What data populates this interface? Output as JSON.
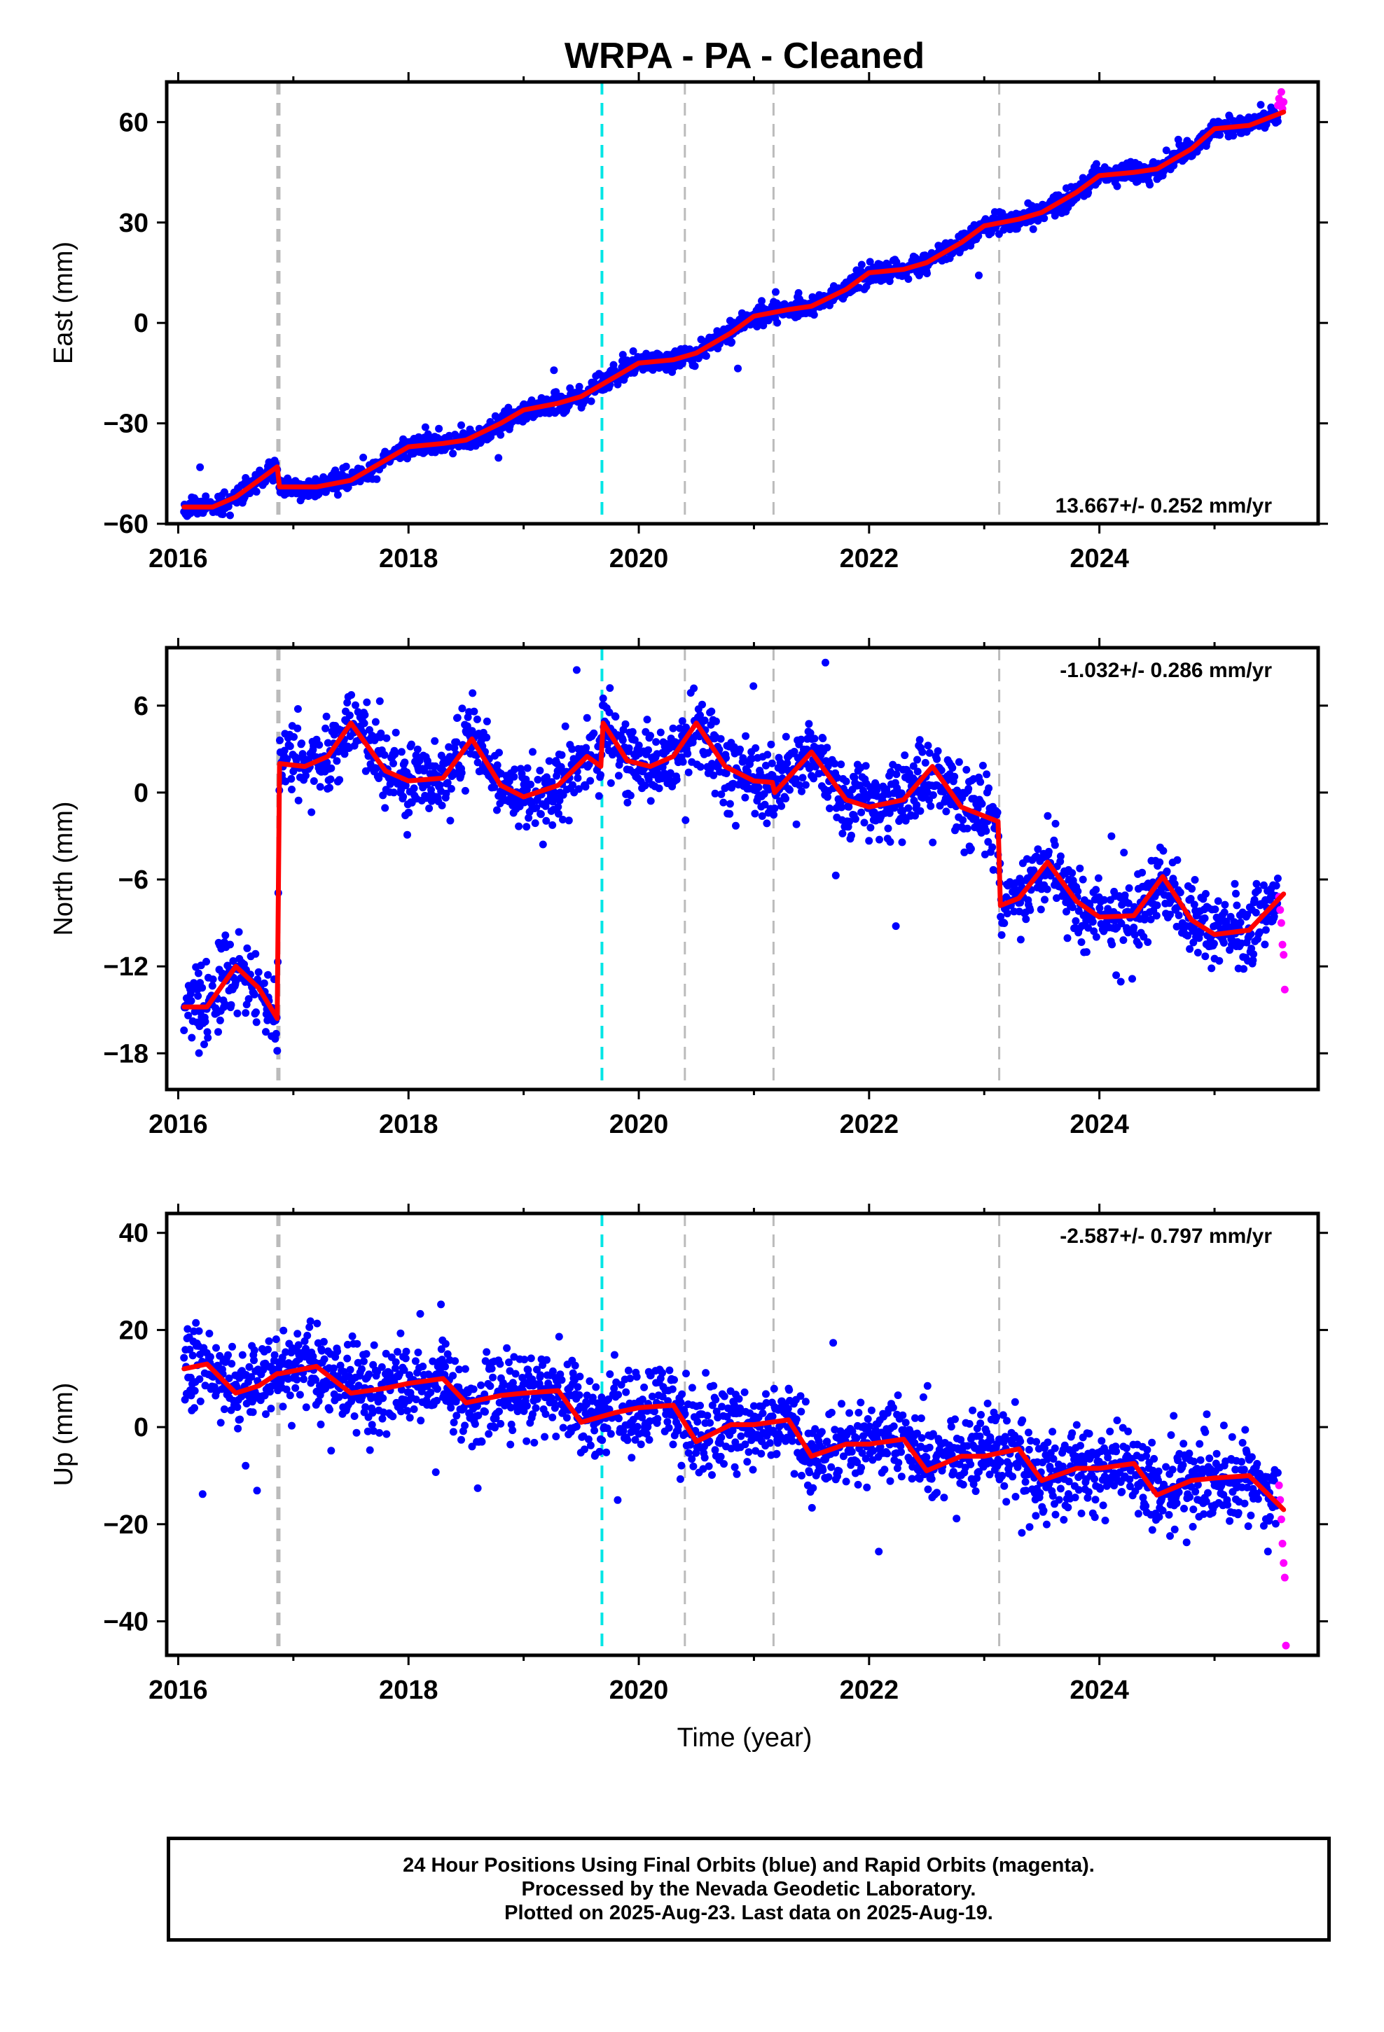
{
  "title": "WRPA  - PA - Cleaned",
  "x_axis_label": "Time (year)",
  "x_ticks": [
    "2016",
    "2018",
    "2020",
    "2022",
    "2024"
  ],
  "colors": {
    "final_orbits": "#0000ff",
    "rapid_orbits": "#ff00ff",
    "model_fit": "#ff0000",
    "equipment_change": "#bbbbbb",
    "earthquake": "#00e5e5"
  },
  "caption": {
    "line1": "24 Hour Positions Using Final Orbits (blue) and Rapid Orbits (magenta).",
    "line2": "Processed by the Nevada Geodetic Laboratory.",
    "line3": "Plotted on 2025-Aug-23. Last data on 2025-Aug-19."
  },
  "chart_data": [
    {
      "type": "scatter",
      "component": "East",
      "ylabel": "East (mm)",
      "rate_label": "13.667+/- 0.252 mm/yr",
      "rate_label_position": "bottom-right",
      "xlim": [
        2015.9,
        2025.9
      ],
      "ylim": [
        -60,
        72
      ],
      "y_ticks": [
        -60,
        -30,
        0,
        30,
        60
      ],
      "discontinuities_gray": [
        2016.87,
        2020.4,
        2021.17,
        2023.13
      ],
      "discontinuities_cyan": [
        2019.68
      ],
      "model_fit": {
        "x": [
          2016.05,
          2016.3,
          2016.5,
          2016.7,
          2016.86,
          2016.88,
          2017.2,
          2017.5,
          2017.8,
          2018.0,
          2018.3,
          2018.5,
          2018.8,
          2019.0,
          2019.3,
          2019.5,
          2019.8,
          2020.0,
          2020.3,
          2020.5,
          2020.8,
          2021.0,
          2021.3,
          2021.5,
          2021.8,
          2022.0,
          2022.3,
          2022.5,
          2022.8,
          2023.0,
          2023.3,
          2023.5,
          2023.8,
          2024.0,
          2024.3,
          2024.5,
          2024.8,
          2025.0,
          2025.3,
          2025.6
        ],
        "y": [
          -55,
          -55,
          -52,
          -47,
          -43,
          -49,
          -49,
          -47,
          -41,
          -37,
          -36,
          -35,
          -30,
          -26,
          -24,
          -22,
          -16,
          -12,
          -11,
          -9,
          -3,
          2,
          4,
          5,
          10,
          15,
          16,
          18,
          24,
          29,
          31,
          33,
          39,
          44,
          45,
          46,
          52,
          58,
          59,
          63
        ]
      },
      "rapid_orbit_points": [
        {
          "x": 2025.55,
          "y": 65
        },
        {
          "x": 2025.56,
          "y": 67
        },
        {
          "x": 2025.57,
          "y": 66
        },
        {
          "x": 2025.58,
          "y": 69
        },
        {
          "x": 2025.59,
          "y": 64
        },
        {
          "x": 2025.6,
          "y": 66
        }
      ]
    },
    {
      "type": "scatter",
      "component": "North",
      "ylabel": "North (mm)",
      "rate_label": "-1.032+/- 0.286 mm/yr",
      "rate_label_position": "top-right",
      "xlim": [
        2015.9,
        2025.9
      ],
      "ylim": [
        -20.5,
        10
      ],
      "y_ticks": [
        -18,
        -12,
        -6,
        0,
        6
      ],
      "discontinuities_gray": [
        2016.87,
        2020.4,
        2021.17,
        2023.13
      ],
      "discontinuities_cyan": [
        2019.68
      ],
      "model_fit": {
        "x": [
          2016.05,
          2016.25,
          2016.5,
          2016.7,
          2016.86,
          2016.88,
          2017.1,
          2017.3,
          2017.5,
          2017.8,
          2018.0,
          2018.3,
          2018.55,
          2018.8,
          2019.0,
          2019.3,
          2019.55,
          2019.67,
          2019.69,
          2019.9,
          2020.1,
          2020.3,
          2020.5,
          2020.75,
          2021.0,
          2021.16,
          2021.18,
          2021.5,
          2021.8,
          2022.0,
          2022.3,
          2022.55,
          2022.8,
          2023.12,
          2023.14,
          2023.3,
          2023.55,
          2023.8,
          2024.0,
          2024.3,
          2024.55,
          2024.8,
          2025.0,
          2025.3,
          2025.6
        ],
        "y": [
          -14.8,
          -14.8,
          -12,
          -13.5,
          -15.6,
          2,
          1.8,
          2.5,
          4.8,
          1.5,
          0.8,
          1,
          3.7,
          0.5,
          -0.3,
          0.5,
          2.5,
          1.8,
          4.8,
          2.2,
          1.8,
          2.5,
          4.8,
          1.8,
          0.8,
          0.7,
          0,
          2.8,
          -0.5,
          -1.0,
          -0.5,
          1.8,
          -1.0,
          -2,
          -7.8,
          -7.3,
          -4.8,
          -7.5,
          -8.6,
          -8.5,
          -5.8,
          -8.8,
          -9.8,
          -9.5,
          -7.0
        ]
      },
      "rapid_orbit_points": [
        {
          "x": 2025.56,
          "y": -7.2
        },
        {
          "x": 2025.57,
          "y": -8.1
        },
        {
          "x": 2025.58,
          "y": -9.0
        },
        {
          "x": 2025.59,
          "y": -10.5
        },
        {
          "x": 2025.6,
          "y": -11.2
        },
        {
          "x": 2025.61,
          "y": -13.6
        }
      ]
    },
    {
      "type": "scatter",
      "component": "Up",
      "ylabel": "Up (mm)",
      "rate_label": "-2.587+/- 0.797 mm/yr",
      "rate_label_position": "top-right",
      "xlim": [
        2015.9,
        2025.9
      ],
      "ylim": [
        -47,
        44
      ],
      "y_ticks": [
        -40,
        -20,
        0,
        20,
        40
      ],
      "discontinuities_gray": [
        2016.87,
        2020.4,
        2021.17,
        2023.13
      ],
      "discontinuities_cyan": [
        2019.68
      ],
      "model_fit": {
        "x": [
          2016.05,
          2016.25,
          2016.5,
          2016.7,
          2016.86,
          2016.88,
          2017.2,
          2017.5,
          2017.8,
          2018.0,
          2018.3,
          2018.5,
          2018.8,
          2019.0,
          2019.3,
          2019.5,
          2019.8,
          2020.0,
          2020.3,
          2020.5,
          2020.8,
          2021.0,
          2021.3,
          2021.5,
          2021.8,
          2022.0,
          2022.3,
          2022.5,
          2022.8,
          2023.0,
          2023.3,
          2023.5,
          2023.8,
          2024.0,
          2024.3,
          2024.5,
          2024.8,
          2025.0,
          2025.3,
          2025.6
        ],
        "y": [
          12,
          13,
          7,
          8.5,
          11,
          11,
          12.5,
          7,
          8,
          9,
          10,
          5,
          6.5,
          7,
          7.5,
          1,
          3,
          4,
          4.5,
          -3,
          0.5,
          0.5,
          1.5,
          -6,
          -3.5,
          -3.5,
          -2.5,
          -9,
          -6,
          -6,
          -4.5,
          -11,
          -8.5,
          -8.5,
          -7.5,
          -14,
          -11,
          -10.5,
          -10,
          -17
        ]
      },
      "rapid_orbit_points": [
        {
          "x": 2025.56,
          "y": -12
        },
        {
          "x": 2025.57,
          "y": -15
        },
        {
          "x": 2025.58,
          "y": -19
        },
        {
          "x": 2025.59,
          "y": -24
        },
        {
          "x": 2025.6,
          "y": -28
        },
        {
          "x": 2025.61,
          "y": -31
        },
        {
          "x": 2025.62,
          "y": -45
        }
      ]
    }
  ]
}
